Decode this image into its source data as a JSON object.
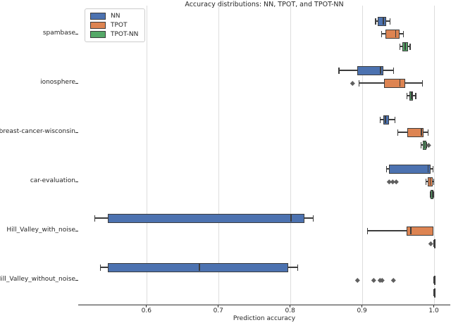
{
  "chart_data": {
    "type": "boxplot",
    "orientation": "horizontal",
    "title": "Accuracy distributions: NN, TPOT, and TPOT-NN",
    "xlabel": "Prediction accuracy",
    "xlim": [
      0.506,
      1.022
    ],
    "x_ticks": [
      0.6,
      0.7,
      0.8,
      0.9,
      1.0
    ],
    "x_tick_labels": [
      "0.6",
      "0.7",
      "0.8",
      "0.9",
      "1.0"
    ],
    "grid": "vertical-light-gray",
    "legend_position": "upper-left",
    "box_edge_color": "#3c3c3c",
    "outlier_color": "#5f5f5f",
    "categories": [
      "spambase",
      "ionosphere",
      "breast-cancer-wisconsin",
      "car-evaluation",
      "Hill_Valley_with_noise",
      "Hill_Valley_without_noise"
    ],
    "series": [
      {
        "name": "NN",
        "color": "#4c72b0",
        "boxes": [
          {
            "whislo": 0.919,
            "q1": 0.922,
            "med": 0.93,
            "q3": 0.934,
            "whishi": 0.939,
            "outliers": []
          },
          {
            "whislo": 0.868,
            "q1": 0.893,
            "med": 0.926,
            "q3": 0.93,
            "whishi": 0.944,
            "outliers": []
          },
          {
            "whislo": 0.925,
            "q1": 0.93,
            "med": 0.933,
            "q3": 0.938,
            "whishi": 0.946,
            "outliers": []
          },
          {
            "whislo": 0.934,
            "q1": 0.938,
            "med": 0.992,
            "q3": 0.996,
            "whishi": 0.999,
            "outliers": []
          },
          {
            "whislo": 0.528,
            "q1": 0.546,
            "med": 0.801,
            "q3": 0.82,
            "whishi": 0.832,
            "outliers": []
          },
          {
            "whislo": 0.536,
            "q1": 0.546,
            "med": 0.674,
            "q3": 0.797,
            "whishi": 0.811,
            "outliers": []
          }
        ]
      },
      {
        "name": "TPOT",
        "color": "#dd8452",
        "boxes": [
          {
            "whislo": 0.927,
            "q1": 0.933,
            "med": 0.947,
            "q3": 0.952,
            "whishi": 0.958,
            "outliers": []
          },
          {
            "whislo": 0.896,
            "q1": 0.931,
            "med": 0.953,
            "q3": 0.96,
            "whishi": 0.984,
            "outliers": [
              0.887
            ]
          },
          {
            "whislo": 0.95,
            "q1": 0.963,
            "med": 0.983,
            "q3": 0.986,
            "whishi": 0.992,
            "outliers": []
          },
          {
            "whislo": 0.989,
            "q1": 0.992,
            "med": 0.995,
            "q3": 0.998,
            "whishi": 1.0,
            "outliers": [
              0.938,
              0.943,
              0.948
            ]
          },
          {
            "whislo": 0.908,
            "q1": 0.962,
            "med": 0.968,
            "q3": 0.999,
            "whishi": 0.999,
            "outliers": []
          },
          {
            "whislo": 1.0,
            "q1": 1.0,
            "med": 1.0,
            "q3": 1.0,
            "whishi": 1.0,
            "outliers": [
              0.894,
              0.916,
              0.925,
              0.928,
              0.944
            ]
          }
        ]
      },
      {
        "name": "TPOT-NN",
        "color": "#55a868",
        "boxes": [
          {
            "whislo": 0.953,
            "q1": 0.956,
            "med": 0.96,
            "q3": 0.964,
            "whishi": 0.967,
            "outliers": []
          },
          {
            "whislo": 0.963,
            "q1": 0.966,
            "med": 0.969,
            "q3": 0.971,
            "whishi": 0.975,
            "outliers": []
          },
          {
            "whislo": 0.982,
            "q1": 0.985,
            "med": 0.987,
            "q3": 0.99,
            "whishi": 0.99,
            "outliers": [
              0.993
            ]
          },
          {
            "whislo": 0.995,
            "q1": 0.996,
            "med": 0.998,
            "q3": 0.999,
            "whishi": 1.0,
            "outliers": []
          },
          {
            "whislo": 1.0,
            "q1": 1.0,
            "med": 1.0,
            "q3": 1.0,
            "whishi": 1.0,
            "outliers": [
              0.996
            ]
          },
          {
            "whislo": 1.0,
            "q1": 1.0,
            "med": 1.0,
            "q3": 1.0,
            "whishi": 1.0,
            "outliers": []
          }
        ]
      }
    ]
  }
}
